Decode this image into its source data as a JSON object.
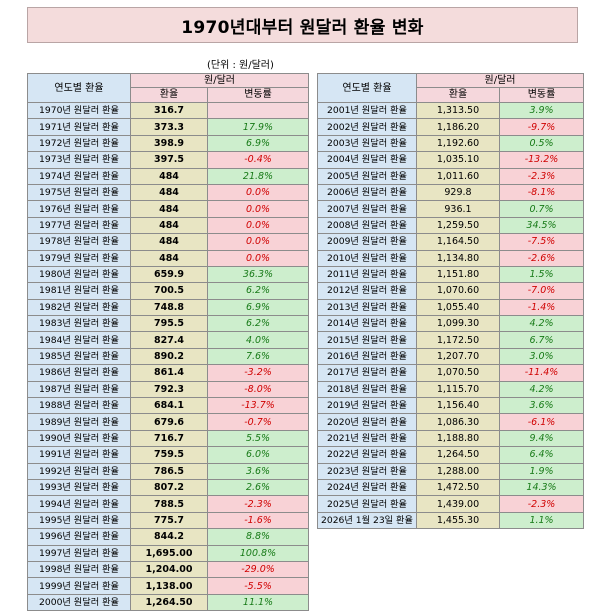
{
  "title": "1970년대부터 원달러 환율 변화",
  "unit": "(단위 : 원/달러)",
  "headers": {
    "year": "연도별 환율",
    "group": "원/달러",
    "rate": "환율",
    "change": "변동률"
  },
  "left_rows": [
    {
      "label": "1970년 원달러 환율",
      "rate": "316.7",
      "change": "",
      "dir": "none"
    },
    {
      "label": "1971년 원달러 환율",
      "rate": "373.3",
      "change": "17.9%",
      "dir": "pos"
    },
    {
      "label": "1972년 원달러 환율",
      "rate": "398.9",
      "change": "6.9%",
      "dir": "pos"
    },
    {
      "label": "1973년 원달러 환율",
      "rate": "397.5",
      "change": "-0.4%",
      "dir": "neg"
    },
    {
      "label": "1974년 원달러 환율",
      "rate": "484",
      "change": "21.8%",
      "dir": "pos"
    },
    {
      "label": "1975년 원달러 환율",
      "rate": "484",
      "change": "0.0%",
      "dir": "neg"
    },
    {
      "label": "1976년 원달러 환율",
      "rate": "484",
      "change": "0.0%",
      "dir": "neg"
    },
    {
      "label": "1977년 원달러 환율",
      "rate": "484",
      "change": "0.0%",
      "dir": "neg"
    },
    {
      "label": "1978년 원달러 환율",
      "rate": "484",
      "change": "0.0%",
      "dir": "neg"
    },
    {
      "label": "1979년 원달러 환율",
      "rate": "484",
      "change": "0.0%",
      "dir": "neg"
    },
    {
      "label": "1980년 원달러 환율",
      "rate": "659.9",
      "change": "36.3%",
      "dir": "pos"
    },
    {
      "label": "1981년 원달러 환율",
      "rate": "700.5",
      "change": "6.2%",
      "dir": "pos"
    },
    {
      "label": "1982년 원달러 환율",
      "rate": "748.8",
      "change": "6.9%",
      "dir": "pos"
    },
    {
      "label": "1983년 원달러 환율",
      "rate": "795.5",
      "change": "6.2%",
      "dir": "pos"
    },
    {
      "label": "1984년 원달러 환율",
      "rate": "827.4",
      "change": "4.0%",
      "dir": "pos"
    },
    {
      "label": "1985년 원달러 환율",
      "rate": "890.2",
      "change": "7.6%",
      "dir": "pos"
    },
    {
      "label": "1986년 원달러 환율",
      "rate": "861.4",
      "change": "-3.2%",
      "dir": "neg"
    },
    {
      "label": "1987년 원달러 환율",
      "rate": "792.3",
      "change": "-8.0%",
      "dir": "neg"
    },
    {
      "label": "1988년 원달러 환율",
      "rate": "684.1",
      "change": "-13.7%",
      "dir": "neg"
    },
    {
      "label": "1989년 원달러 환율",
      "rate": "679.6",
      "change": "-0.7%",
      "dir": "neg"
    },
    {
      "label": "1990년 원달러 환율",
      "rate": "716.7",
      "change": "5.5%",
      "dir": "pos"
    },
    {
      "label": "1991년 원달러 환율",
      "rate": "759.5",
      "change": "6.0%",
      "dir": "pos"
    },
    {
      "label": "1992년 원달러 환율",
      "rate": "786.5",
      "change": "3.6%",
      "dir": "pos"
    },
    {
      "label": "1993년 원달러 환율",
      "rate": "807.2",
      "change": "2.6%",
      "dir": "pos"
    },
    {
      "label": "1994년 원달러 환율",
      "rate": "788.5",
      "change": "-2.3%",
      "dir": "neg"
    },
    {
      "label": "1995년 원달러 환율",
      "rate": "775.7",
      "change": "-1.6%",
      "dir": "neg"
    },
    {
      "label": "1996년 원달러 환율",
      "rate": "844.2",
      "change": "8.8%",
      "dir": "pos"
    },
    {
      "label": "1997년 원달러 환율",
      "rate": "1,695.00",
      "change": "100.8%",
      "dir": "pos"
    },
    {
      "label": "1998년 원달러 환율",
      "rate": "1,204.00",
      "change": "-29.0%",
      "dir": "neg"
    },
    {
      "label": "1999년 원달러 환율",
      "rate": "1,138.00",
      "change": "-5.5%",
      "dir": "neg"
    },
    {
      "label": "2000년 원달러 환율",
      "rate": "1,264.50",
      "change": "11.1%",
      "dir": "pos"
    }
  ],
  "right_rows": [
    {
      "label": "2001년 원달러 환율",
      "rate": "1,313.50",
      "change": "3.9%",
      "dir": "pos"
    },
    {
      "label": "2002년 원달러 환율",
      "rate": "1,186.20",
      "change": "-9.7%",
      "dir": "neg"
    },
    {
      "label": "2003년 원달러 환율",
      "rate": "1,192.60",
      "change": "0.5%",
      "dir": "pos"
    },
    {
      "label": "2004년 원달러 환율",
      "rate": "1,035.10",
      "change": "-13.2%",
      "dir": "neg"
    },
    {
      "label": "2005년 원달러 환율",
      "rate": "1,011.60",
      "change": "-2.3%",
      "dir": "neg"
    },
    {
      "label": "2006년 원달러 환율",
      "rate": "929.8",
      "change": "-8.1%",
      "dir": "neg"
    },
    {
      "label": "2007년 원달러 환율",
      "rate": "936.1",
      "change": "0.7%",
      "dir": "pos"
    },
    {
      "label": "2008년 원달러 환율",
      "rate": "1,259.50",
      "change": "34.5%",
      "dir": "pos"
    },
    {
      "label": "2009년 원달러 환율",
      "rate": "1,164.50",
      "change": "-7.5%",
      "dir": "neg"
    },
    {
      "label": "2010년 원달러 환율",
      "rate": "1,134.80",
      "change": "-2.6%",
      "dir": "neg"
    },
    {
      "label": "2011년 원달러 환율",
      "rate": "1,151.80",
      "change": "1.5%",
      "dir": "pos"
    },
    {
      "label": "2012년 원달러 환율",
      "rate": "1,070.60",
      "change": "-7.0%",
      "dir": "neg"
    },
    {
      "label": "2013년 원달러 환율",
      "rate": "1,055.40",
      "change": "-1.4%",
      "dir": "neg"
    },
    {
      "label": "2014년 원달러 환율",
      "rate": "1,099.30",
      "change": "4.2%",
      "dir": "pos"
    },
    {
      "label": "2015년 원달러 환율",
      "rate": "1,172.50",
      "change": "6.7%",
      "dir": "pos"
    },
    {
      "label": "2016년 원달러 환율",
      "rate": "1,207.70",
      "change": "3.0%",
      "dir": "pos"
    },
    {
      "label": "2017년 원달러 환율",
      "rate": "1,070.50",
      "change": "-11.4%",
      "dir": "neg"
    },
    {
      "label": "2018년 원달러 환율",
      "rate": "1,115.70",
      "change": "4.2%",
      "dir": "pos"
    },
    {
      "label": "2019년 원달러 환율",
      "rate": "1,156.40",
      "change": "3.6%",
      "dir": "pos"
    },
    {
      "label": "2020년 원달러 환율",
      "rate": "1,086.30",
      "change": "-6.1%",
      "dir": "neg"
    },
    {
      "label": "2021년 원달러 환율",
      "rate": "1,188.80",
      "change": "9.4%",
      "dir": "pos"
    },
    {
      "label": "2022년 원달러 환율",
      "rate": "1,264.50",
      "change": "6.4%",
      "dir": "pos"
    },
    {
      "label": "2023년 원달러 환율",
      "rate": "1,288.00",
      "change": "1.9%",
      "dir": "pos"
    },
    {
      "label": "2024년 원달러 환율",
      "rate": "1,472.50",
      "change": "14.3%",
      "dir": "pos"
    },
    {
      "label": "2025년 원달러 환율",
      "rate": "1,439.00",
      "change": "-2.3%",
      "dir": "neg"
    },
    {
      "label": "2026년 1월 23일 환율",
      "rate": "1,455.30",
      "change": "1.1%",
      "dir": "pos"
    }
  ]
}
